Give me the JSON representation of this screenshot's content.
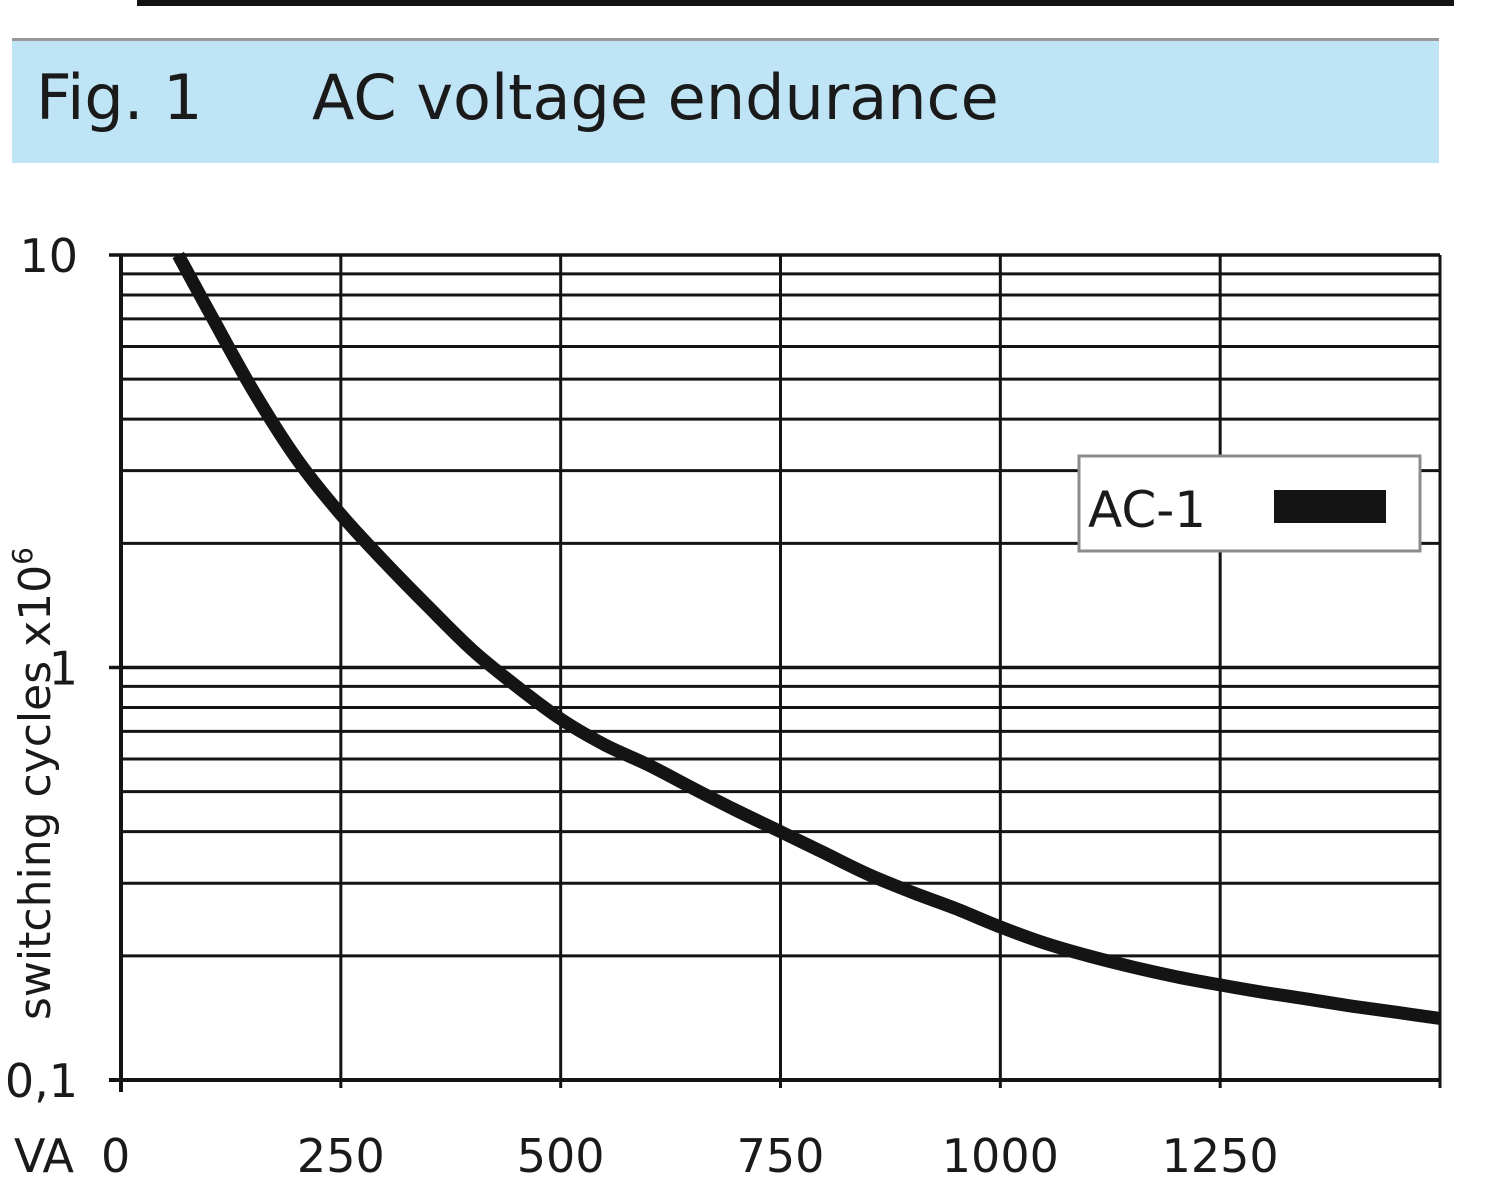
{
  "figure": {
    "number": "Fig. 1",
    "title": "AC voltage endurance"
  },
  "chart_data": {
    "type": "line",
    "ylabel": "switching cycles  x10",
    "ylabel_superscript": "6",
    "x_unit_label": "VA",
    "xlim": [
      0,
      1500
    ],
    "ylim": [
      0.1,
      10
    ],
    "yscale": "log",
    "x_ticks": [
      0,
      250,
      500,
      750,
      1000,
      1250
    ],
    "x_tick_labels": [
      "0",
      "250",
      "500",
      "750",
      "1000",
      "1250"
    ],
    "y_ticks": [
      10,
      1,
      0.1
    ],
    "y_tick_labels": [
      "10",
      "1",
      "0,1"
    ],
    "grid": true,
    "legend_position": "right",
    "series": [
      {
        "name": "AC-1",
        "color": "#141414",
        "x": [
          65,
          100,
          150,
          200,
          250,
          300,
          350,
          400,
          450,
          500,
          550,
          600,
          650,
          700,
          750,
          800,
          850,
          900,
          950,
          1000,
          1050,
          1100,
          1150,
          1200,
          1250,
          1300,
          1350,
          1400,
          1450,
          1500
        ],
        "y": [
          10,
          7.3,
          4.7,
          3.2,
          2.35,
          1.8,
          1.4,
          1.1,
          0.9,
          0.75,
          0.65,
          0.58,
          0.51,
          0.45,
          0.4,
          0.355,
          0.315,
          0.285,
          0.26,
          0.235,
          0.215,
          0.2,
          0.188,
          0.178,
          0.17,
          0.163,
          0.157,
          0.151,
          0.146,
          0.141
        ]
      }
    ]
  }
}
